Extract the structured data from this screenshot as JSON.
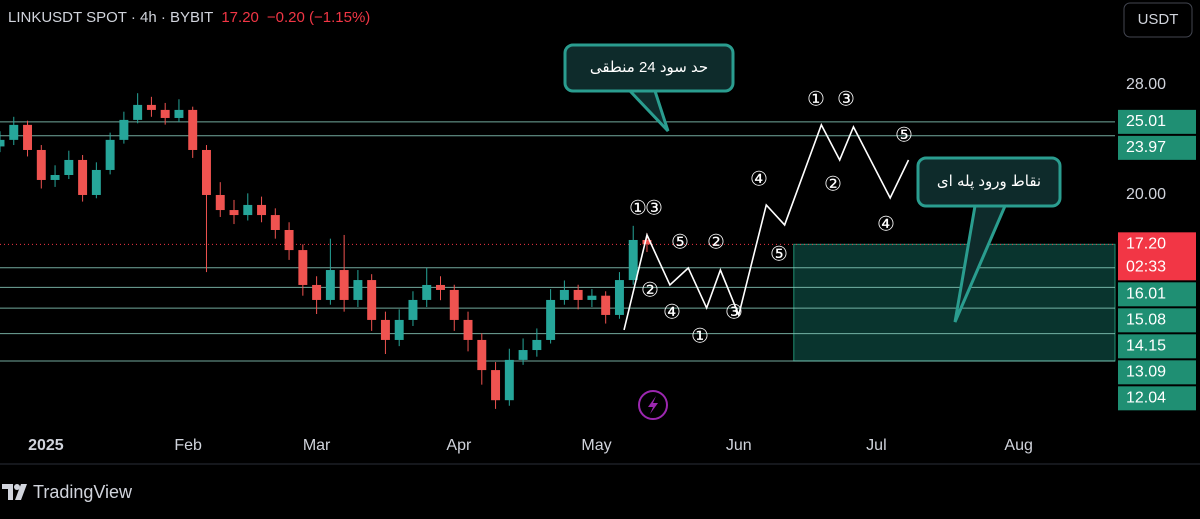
{
  "header": {
    "symbol": "LINKUSDT SPOT · 4h · BYBIT",
    "price": "17.20",
    "change": "−0.20 (−1.15%)"
  },
  "currency_button": "USDT",
  "footer": {
    "brand": "TradingView"
  },
  "chart_data": {
    "type": "candlestick",
    "log_scale": true,
    "x": [
      -10,
      -7,
      -4,
      -1,
      2,
      5,
      8,
      11,
      14,
      17,
      20,
      23,
      26,
      29,
      32,
      35,
      38,
      41,
      44,
      47,
      50,
      53,
      56,
      59,
      62,
      65,
      68,
      71,
      74,
      77,
      80,
      83,
      86,
      89,
      92,
      95,
      98,
      101,
      104,
      107,
      110,
      113,
      116,
      119,
      122,
      125,
      128,
      131
    ],
    "open": [
      23.2,
      23.67,
      24.78,
      22.95,
      20.94,
      21.26,
      22.26,
      20.0,
      21.59,
      23.67,
      25.16,
      26.34,
      25.94,
      25.31,
      25.94,
      22.95,
      20.0,
      19.1,
      18.81,
      19.4,
      18.81,
      17.97,
      16.9,
      15.19,
      14.51,
      15.9,
      14.51,
      15.42,
      13.65,
      12.84,
      13.65,
      14.51,
      15.19,
      14.96,
      13.65,
      12.84,
      11.71,
      10.68,
      12.08,
      12.45,
      12.84,
      14.51,
      14.96,
      14.51,
      14.7,
      13.86,
      15.42,
      17.43
    ],
    "high": [
      24.3,
      25.4,
      25.1,
      23.3,
      21.9,
      22.9,
      22.6,
      22.1,
      24.2,
      25.8,
      27.3,
      27.0,
      26.5,
      26.8,
      26.2,
      23.3,
      20.8,
      19.7,
      20.1,
      19.9,
      19.2,
      18.4,
      17.2,
      15.6,
      17.5,
      17.7,
      15.9,
      15.7,
      14.0,
      14.1,
      14.9,
      16.0,
      15.6,
      15.2,
      14.0,
      13.1,
      12.0,
      12.5,
      12.9,
      13.3,
      15.0,
      15.4,
      15.2,
      15.0,
      14.9,
      15.8,
      18.2,
      17.8
    ],
    "low": [
      22.8,
      23.3,
      22.5,
      20.4,
      20.5,
      21.0,
      19.6,
      19.8,
      21.3,
      23.4,
      24.9,
      25.4,
      24.8,
      25.0,
      22.4,
      15.8,
      18.7,
      18.3,
      18.5,
      18.4,
      17.5,
      16.4,
      14.7,
      13.9,
      14.3,
      14.0,
      14.2,
      13.2,
      12.3,
      12.6,
      13.4,
      14.2,
      14.5,
      13.2,
      12.4,
      11.2,
      10.4,
      10.5,
      11.9,
      12.2,
      12.7,
      14.3,
      14.1,
      14.2,
      13.5,
      13.7,
      15.2,
      16.8
    ],
    "close": [
      23.67,
      24.78,
      22.95,
      20.94,
      21.26,
      22.26,
      20.0,
      21.59,
      23.67,
      25.16,
      26.34,
      25.94,
      25.31,
      25.94,
      22.95,
      20.0,
      19.1,
      18.81,
      19.4,
      18.81,
      17.97,
      16.9,
      15.19,
      14.51,
      15.9,
      14.51,
      15.42,
      13.65,
      12.84,
      13.65,
      14.51,
      15.19,
      14.96,
      13.65,
      12.84,
      11.71,
      10.68,
      12.08,
      12.45,
      12.84,
      14.51,
      14.96,
      14.51,
      14.7,
      13.86,
      15.42,
      17.43,
      17.2
    ],
    "up_color": "#26a69a",
    "down_color": "#ef5350",
    "xlim": [
      -10,
      233
    ],
    "xticks": [
      {
        "value": 0,
        "label": "2025"
      },
      {
        "value": 31,
        "label": "Feb"
      },
      {
        "value": 59,
        "label": "Mar"
      },
      {
        "value": 90,
        "label": "Apr"
      },
      {
        "value": 120,
        "label": "May"
      },
      {
        "value": 151,
        "label": "Jun"
      },
      {
        "value": 181,
        "label": "Jul"
      },
      {
        "value": 212,
        "label": "Aug"
      }
    ],
    "ylim": [
      9.75,
      36.3
    ],
    "yticks": [
      {
        "value": 20,
        "label": "20.00"
      },
      {
        "value": 28,
        "label": "28.00"
      }
    ],
    "last_price": {
      "value": 17.2,
      "label": "17.20",
      "countdown": "02:33",
      "color": "#f23645"
    },
    "levels": [
      25.01,
      23.97,
      16.01,
      15.08,
      14.15,
      13.09,
      12.04
    ],
    "level_color": "#1f8f73",
    "projection": {
      "color": "#ffffff",
      "x": [
        126,
        131,
        136,
        140,
        144,
        147,
        151,
        157,
        161,
        169,
        173,
        176,
        184,
        188
      ],
      "values": [
        13.24,
        17.7,
        15.19,
        16.0,
        14.16,
        15.9,
        13.86,
        19.4,
        18.25,
        24.78,
        22.26,
        24.63,
        19.82,
        22.26
      ]
    },
    "wave_labels": [
      "①",
      "③",
      "⑤",
      "②",
      "④",
      "①",
      "③",
      "②",
      "⑤",
      "④",
      "①",
      "③",
      "②",
      "⑤",
      "④"
    ],
    "entry_zone": {
      "x_start": 163,
      "top": 17.2,
      "bottom": 12.04,
      "color": "#0a3a33"
    },
    "annotations": [
      {
        "text": "حد سود 24 منطقی"
      },
      {
        "text": "نقاط ورود پله ای"
      }
    ]
  }
}
